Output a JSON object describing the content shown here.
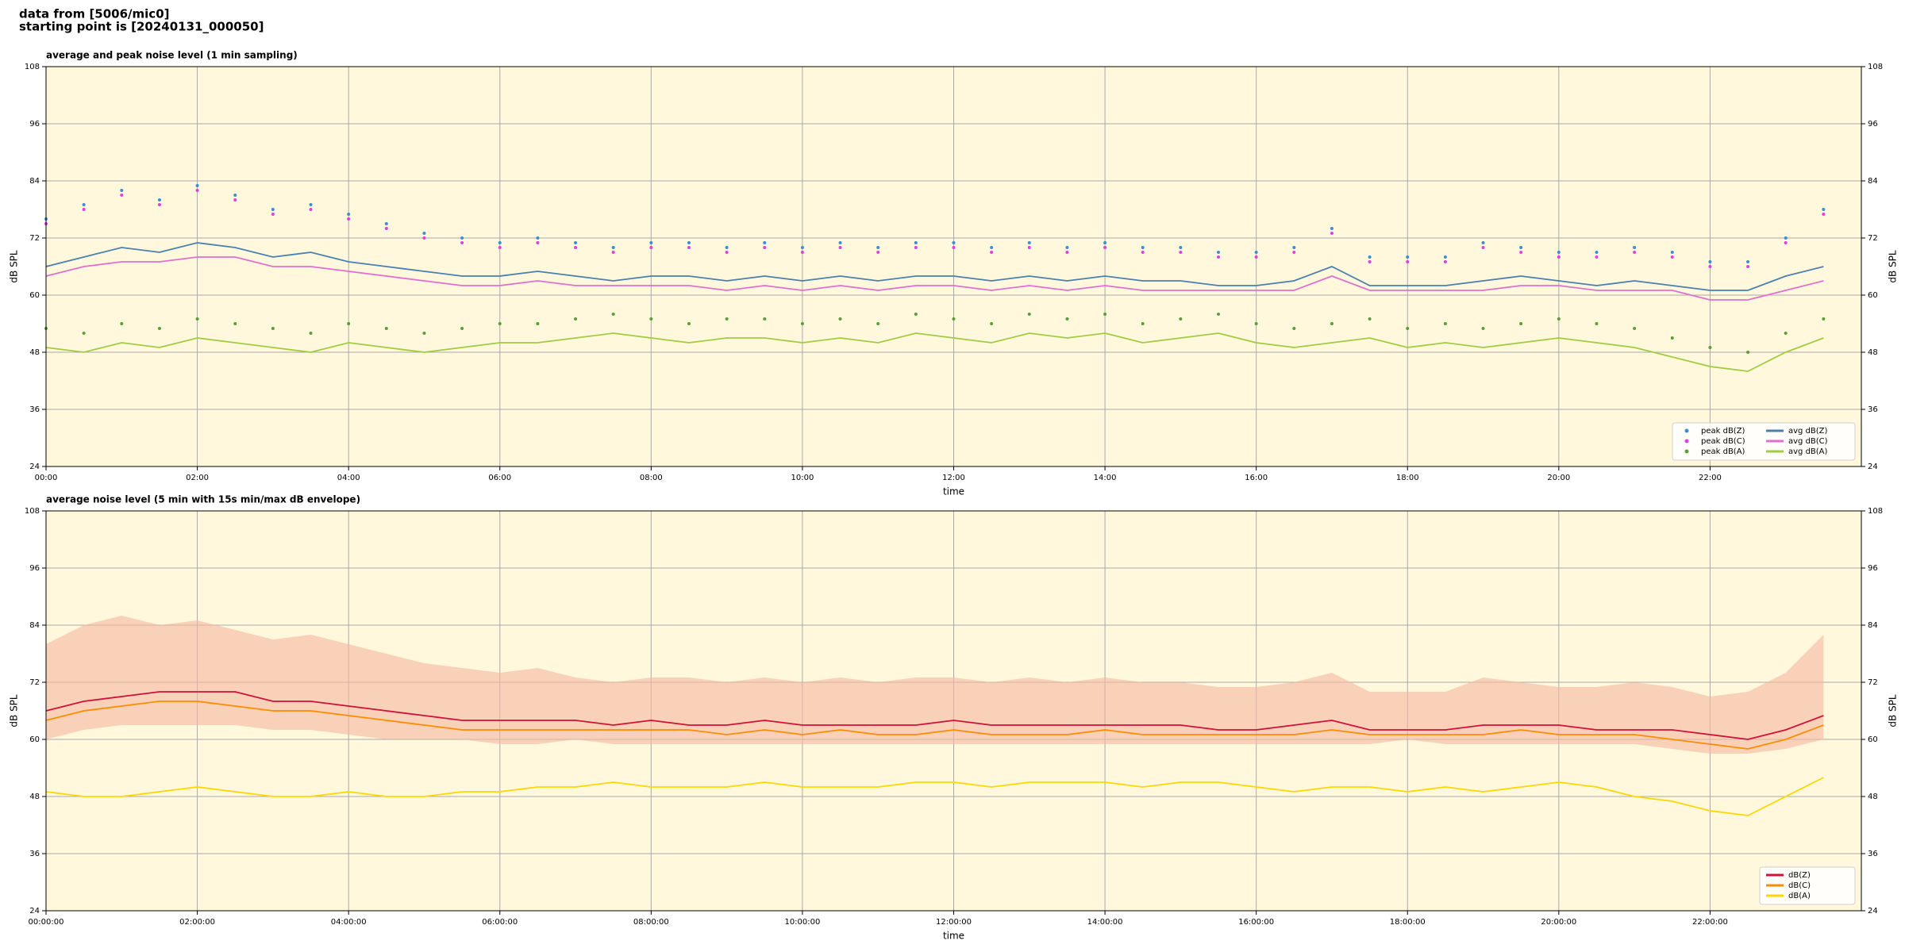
{
  "header": [
    "data from [5006/mic0]",
    "starting point is [20240131_000050]"
  ],
  "chart_data": [
    {
      "type": "line",
      "title": "average and peak noise level (1 min sampling)",
      "xlabel": "time",
      "ylabel": "dB SPL",
      "ylim": [
        24,
        108
      ],
      "yticks": [
        24,
        36,
        48,
        60,
        72,
        84,
        96,
        108
      ],
      "grid": true,
      "legend": "lower right",
      "legend_columns": 2,
      "xlim": [
        "00:00",
        "24:00"
      ],
      "xticks": [
        "00:00",
        "02:00",
        "04:00",
        "06:00",
        "08:00",
        "10:00",
        "12:00",
        "14:00",
        "16:00",
        "18:00",
        "20:00",
        "22:00"
      ],
      "x": [
        "00:00",
        "00:30",
        "01:00",
        "01:30",
        "02:00",
        "02:30",
        "03:00",
        "03:30",
        "04:00",
        "04:30",
        "05:00",
        "05:30",
        "06:00",
        "06:30",
        "07:00",
        "07:30",
        "08:00",
        "08:30",
        "09:00",
        "09:30",
        "10:00",
        "10:30",
        "11:00",
        "11:30",
        "12:00",
        "12:30",
        "13:00",
        "13:30",
        "14:00",
        "14:30",
        "15:00",
        "15:30",
        "16:00",
        "16:30",
        "17:00",
        "17:30",
        "18:00",
        "18:30",
        "19:00",
        "19:30",
        "20:00",
        "20:30",
        "21:00",
        "21:30",
        "22:00",
        "22:30",
        "23:00",
        "23:30"
      ],
      "series": [
        {
          "name": "peak dB(Z)",
          "type": "scatter",
          "color": "#3a8fd0",
          "values": [
            76,
            79,
            82,
            80,
            83,
            81,
            78,
            79,
            77,
            75,
            73,
            72,
            71,
            72,
            71,
            70,
            71,
            71,
            70,
            71,
            70,
            71,
            70,
            71,
            71,
            70,
            71,
            70,
            71,
            70,
            70,
            69,
            69,
            70,
            74,
            68,
            68,
            68,
            71,
            70,
            69,
            69,
            70,
            69,
            67,
            67,
            72,
            78
          ]
        },
        {
          "name": "peak dB(C)",
          "type": "scatter",
          "color": "#e040e0",
          "values": [
            75,
            78,
            81,
            79,
            82,
            80,
            77,
            78,
            76,
            74,
            72,
            71,
            70,
            71,
            70,
            69,
            70,
            70,
            69,
            70,
            69,
            70,
            69,
            70,
            70,
            69,
            70,
            69,
            70,
            69,
            69,
            68,
            68,
            69,
            73,
            67,
            67,
            67,
            70,
            69,
            68,
            68,
            69,
            68,
            66,
            66,
            71,
            77
          ]
        },
        {
          "name": "peak dB(A)",
          "type": "scatter",
          "color": "#5a9e3a",
          "values": [
            53,
            52,
            54,
            53,
            55,
            54,
            53,
            52,
            54,
            53,
            52,
            53,
            54,
            54,
            55,
            56,
            55,
            54,
            55,
            55,
            54,
            55,
            54,
            56,
            55,
            54,
            56,
            55,
            56,
            54,
            55,
            56,
            54,
            53,
            54,
            55,
            53,
            54,
            53,
            54,
            55,
            54,
            53,
            51,
            49,
            48,
            52,
            55
          ]
        },
        {
          "name": "avg dB(Z)",
          "type": "line",
          "color": "#4a7fb0",
          "values": [
            66,
            68,
            70,
            69,
            71,
            70,
            68,
            69,
            67,
            66,
            65,
            64,
            64,
            65,
            64,
            63,
            64,
            64,
            63,
            64,
            63,
            64,
            63,
            64,
            64,
            63,
            64,
            63,
            64,
            63,
            63,
            62,
            62,
            63,
            66,
            62,
            62,
            62,
            63,
            64,
            63,
            62,
            63,
            62,
            61,
            61,
            64,
            66
          ]
        },
        {
          "name": "avg dB(C)",
          "type": "line",
          "color": "#e070d0",
          "values": [
            64,
            66,
            67,
            67,
            68,
            68,
            66,
            66,
            65,
            64,
            63,
            62,
            62,
            63,
            62,
            62,
            62,
            62,
            61,
            62,
            61,
            62,
            61,
            62,
            62,
            61,
            62,
            61,
            62,
            61,
            61,
            61,
            61,
            61,
            64,
            61,
            61,
            61,
            61,
            62,
            62,
            61,
            61,
            61,
            59,
            59,
            61,
            63
          ]
        },
        {
          "name": "avg dB(A)",
          "type": "line",
          "color": "#a0cc40",
          "values": [
            49,
            48,
            50,
            49,
            51,
            50,
            49,
            48,
            50,
            49,
            48,
            49,
            50,
            50,
            51,
            52,
            51,
            50,
            51,
            51,
            50,
            51,
            50,
            52,
            51,
            50,
            52,
            51,
            52,
            50,
            51,
            52,
            50,
            49,
            50,
            51,
            49,
            50,
            49,
            50,
            51,
            50,
            49,
            47,
            45,
            44,
            48,
            51
          ]
        }
      ]
    },
    {
      "type": "line",
      "title": "average noise level (5 min with 15s min/max dB envelope)",
      "xlabel": "time",
      "ylabel": "dB SPL",
      "ylim": [
        24,
        108
      ],
      "yticks": [
        24,
        36,
        48,
        60,
        72,
        84,
        96,
        108
      ],
      "grid": true,
      "legend": "lower right",
      "legend_columns": 1,
      "xlim": [
        "00:00:00",
        "24:00:00"
      ],
      "xticks": [
        "00:00:00",
        "02:00:00",
        "04:00:00",
        "06:00:00",
        "08:00:00",
        "10:00:00",
        "12:00:00",
        "14:00:00",
        "16:00:00",
        "18:00:00",
        "20:00:00",
        "22:00:00"
      ],
      "x": [
        "00:00:00",
        "00:30:00",
        "01:00:00",
        "01:30:00",
        "02:00:00",
        "02:30:00",
        "03:00:00",
        "03:30:00",
        "04:00:00",
        "04:30:00",
        "05:00:00",
        "05:30:00",
        "06:00:00",
        "06:30:00",
        "07:00:00",
        "07:30:00",
        "08:00:00",
        "08:30:00",
        "09:00:00",
        "09:30:00",
        "10:00:00",
        "10:30:00",
        "11:00:00",
        "11:30:00",
        "12:00:00",
        "12:30:00",
        "13:00:00",
        "13:30:00",
        "14:00:00",
        "14:30:00",
        "15:00:00",
        "15:30:00",
        "16:00:00",
        "16:30:00",
        "17:00:00",
        "17:30:00",
        "18:00:00",
        "18:30:00",
        "19:00:00",
        "19:30:00",
        "20:00:00",
        "20:30:00",
        "21:00:00",
        "21:30:00",
        "22:00:00",
        "22:30:00",
        "23:00:00",
        "23:30:00"
      ],
      "envelope": {
        "color": "#f5b8a0",
        "lower": [
          60,
          62,
          63,
          63,
          63,
          63,
          62,
          62,
          61,
          60,
          60,
          60,
          59,
          59,
          60,
          59,
          59,
          59,
          59,
          59,
          59,
          59,
          59,
          59,
          59,
          59,
          59,
          59,
          59,
          59,
          59,
          59,
          59,
          59,
          59,
          59,
          60,
          59,
          59,
          59,
          59,
          59,
          59,
          58,
          57,
          57,
          58,
          60
        ],
        "upper": [
          80,
          84,
          86,
          84,
          85,
          83,
          81,
          82,
          80,
          78,
          76,
          75,
          74,
          75,
          73,
          72,
          73,
          73,
          72,
          73,
          72,
          73,
          72,
          73,
          73,
          72,
          73,
          72,
          73,
          72,
          72,
          71,
          71,
          72,
          74,
          70,
          70,
          70,
          73,
          72,
          71,
          71,
          72,
          71,
          69,
          70,
          74,
          82
        ]
      },
      "series": [
        {
          "name": "dB(Z)",
          "type": "line",
          "color": "#d0103a",
          "values": [
            66,
            68,
            69,
            70,
            70,
            70,
            68,
            68,
            67,
            66,
            65,
            64,
            64,
            64,
            64,
            63,
            64,
            63,
            63,
            64,
            63,
            63,
            63,
            63,
            64,
            63,
            63,
            63,
            63,
            63,
            63,
            62,
            62,
            63,
            64,
            62,
            62,
            62,
            63,
            63,
            63,
            62,
            62,
            62,
            61,
            60,
            62,
            65
          ]
        },
        {
          "name": "dB(C)",
          "type": "line",
          "color": "#ff8c00",
          "values": [
            64,
            66,
            67,
            68,
            68,
            67,
            66,
            66,
            65,
            64,
            63,
            62,
            62,
            62,
            62,
            62,
            62,
            62,
            61,
            62,
            61,
            62,
            61,
            61,
            62,
            61,
            61,
            61,
            62,
            61,
            61,
            61,
            61,
            61,
            62,
            61,
            61,
            61,
            61,
            62,
            61,
            61,
            61,
            60,
            59,
            58,
            60,
            63
          ]
        },
        {
          "name": "dB(A)",
          "type": "line",
          "color": "#ffd700",
          "values": [
            49,
            48,
            48,
            49,
            50,
            49,
            48,
            48,
            49,
            48,
            48,
            49,
            49,
            50,
            50,
            51,
            50,
            50,
            50,
            51,
            50,
            50,
            50,
            51,
            51,
            50,
            51,
            51,
            51,
            50,
            51,
            51,
            50,
            49,
            50,
            50,
            49,
            50,
            49,
            50,
            51,
            50,
            48,
            47,
            45,
            44,
            48,
            52
          ]
        }
      ]
    }
  ]
}
